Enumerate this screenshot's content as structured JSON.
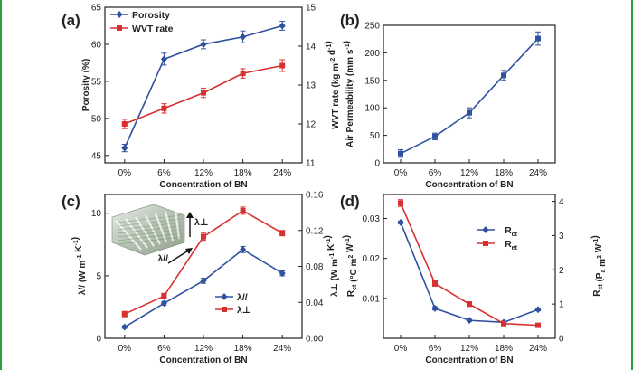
{
  "figure": {
    "accent_color": "#2e9e3a",
    "blue": "#3050a0",
    "red": "#d83030"
  },
  "chart_data": [
    {
      "panel": "(a)",
      "type": "line",
      "categories": [
        "0%",
        "6%",
        "12%",
        "18%",
        "24%"
      ],
      "xlabel": "Concentration of BN",
      "ylabel": "Porosity (%)",
      "ylabel_right": "WVT rate (kg m⁻² d⁻¹)",
      "ylim": [
        44,
        65
      ],
      "yticks": [
        45,
        50,
        55,
        60,
        65
      ],
      "ylim_right": [
        11,
        15
      ],
      "yticks_right": [
        11,
        12,
        13,
        14,
        15
      ],
      "series": [
        {
          "name": "Porosity",
          "axis": "left",
          "color": "#3050a0",
          "marker": "diamond",
          "values": [
            46,
            58,
            60,
            61,
            62.5
          ],
          "errors": [
            0.5,
            0.8,
            0.6,
            0.8,
            0.6
          ]
        },
        {
          "name": "WVT rate",
          "axis": "right",
          "color": "#d83030",
          "marker": "square",
          "values": [
            12.0,
            12.4,
            12.8,
            13.3,
            13.5
          ],
          "errors": [
            0.12,
            0.12,
            0.12,
            0.12,
            0.15
          ]
        }
      ],
      "legend": "top-left"
    },
    {
      "panel": "(b)",
      "type": "line",
      "categories": [
        "0%",
        "6%",
        "12%",
        "18%",
        "24%"
      ],
      "xlabel": "Concentration of BN",
      "ylabel": "Air Permeability (mm s⁻¹)",
      "ylim": [
        0,
        250
      ],
      "yticks": [
        0,
        50,
        100,
        150,
        200,
        250
      ],
      "series": [
        {
          "name": "Air Permeability",
          "axis": "left",
          "color": "#3050a0",
          "marker": "square",
          "values": [
            17,
            48,
            91,
            159,
            226
          ],
          "errors": [
            7,
            6,
            9,
            9,
            12
          ]
        }
      ]
    },
    {
      "panel": "(c)",
      "type": "line",
      "categories": [
        "0%",
        "6%",
        "12%",
        "18%",
        "24%"
      ],
      "xlabel": "Concentration of BN",
      "ylabel": "λ// (W m⁻¹ K⁻¹)",
      "ylabel_right": "λ⊥ (W m⁻¹ K⁻¹)",
      "ylim": [
        0,
        11.5
      ],
      "yticks": [
        0,
        5,
        10
      ],
      "ylim_right": [
        0,
        0.16
      ],
      "yticks_right": [
        0.0,
        0.04,
        0.08,
        0.12,
        0.16
      ],
      "yticks_right_labels": [
        "0.00",
        "0.04",
        "0.08",
        "0.12",
        "0.16"
      ],
      "series": [
        {
          "name": "λ//",
          "axis": "left",
          "color": "#3050a0",
          "marker": "diamond",
          "values": [
            0.9,
            2.8,
            4.6,
            7.1,
            5.2
          ],
          "errors": [
            0.1,
            0.15,
            0.2,
            0.25,
            0.2
          ]
        },
        {
          "name": "λ⊥",
          "axis": "right",
          "color": "#d83030",
          "marker": "square",
          "values": [
            0.027,
            0.047,
            0.113,
            0.142,
            0.117
          ],
          "errors": [
            0.003,
            0.003,
            0.004,
            0.004,
            0.003
          ]
        }
      ],
      "inset_labels": {
        "perp": "λ⊥",
        "parallel": "λ//"
      },
      "legend": "bottom-right"
    },
    {
      "panel": "(d)",
      "type": "line",
      "categories": [
        "0%",
        "6%",
        "12%",
        "18%",
        "24%"
      ],
      "xlabel": "Concentration of BN",
      "ylabel": "R_ct (°C m² W⁻¹)",
      "ylabel_right": "R_et (P_a m² W⁻¹)",
      "ylim": [
        0,
        0.036
      ],
      "yticks": [
        0.01,
        0.02,
        0.03
      ],
      "yticks_labels": [
        "0.01",
        "0.02",
        "0.03"
      ],
      "ylim_right": [
        0,
        4.2
      ],
      "yticks_right": [
        0,
        1,
        2,
        3,
        4
      ],
      "series": [
        {
          "name": "Rct",
          "axis": "left",
          "color": "#3050a0",
          "marker": "diamond",
          "values": [
            0.029,
            0.0075,
            0.0045,
            0.004,
            0.0072
          ],
          "errors": [
            0.0003,
            0.0004,
            0.0003,
            0.0003,
            0.0003
          ]
        },
        {
          "name": "Ret",
          "axis": "right",
          "color": "#d83030",
          "marker": "square",
          "values": [
            3.95,
            1.6,
            1.0,
            0.43,
            0.38
          ],
          "errors": [
            0.1,
            0.08,
            0.07,
            0.05,
            0.04
          ]
        }
      ],
      "legend": "top-right"
    }
  ]
}
